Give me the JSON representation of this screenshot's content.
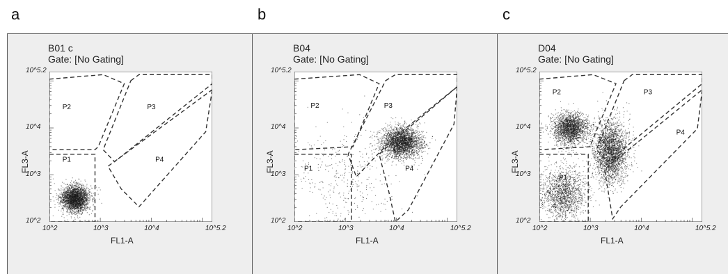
{
  "panels": [
    {
      "letter": "a",
      "sample": "B01 c",
      "gate": "Gate: [No Gating]"
    },
    {
      "letter": "b",
      "sample": "B04",
      "gate": "Gate: [No Gating]"
    },
    {
      "letter": "c",
      "sample": "D04",
      "gate": "Gate: [No Gating]"
    }
  ],
  "axes": {
    "xlabel": "FL1-A",
    "ylabel": "FL3-A"
  },
  "ticks": [
    "10^2",
    "10^3",
    "10^4",
    "10^5.2"
  ],
  "gate_names": [
    "P1",
    "P2",
    "P3",
    "P4"
  ],
  "chart_data": [
    {
      "type": "scatter",
      "title": "B01 c",
      "subtitle": "Gate: [No Gating]",
      "xlabel": "FL1-A",
      "ylabel": "FL3-A",
      "x_scale": "log",
      "y_scale": "log",
      "xlim": [
        100,
        158489
      ],
      "ylim": [
        100,
        158489
      ],
      "clusters": [
        {
          "x_center": 316,
          "y_center": 316,
          "x_spread_decades": 0.25,
          "y_spread_decades": 0.25,
          "relative_density": 1.0
        }
      ],
      "gates": [
        "P1",
        "P2",
        "P3",
        "P4"
      ]
    },
    {
      "type": "scatter",
      "title": "B04",
      "subtitle": "Gate: [No Gating]",
      "xlabel": "FL1-A",
      "ylabel": "FL3-A",
      "x_scale": "log",
      "y_scale": "log",
      "xlim": [
        100,
        158489
      ],
      "ylim": [
        100,
        158489
      ],
      "clusters": [
        {
          "x_center": 12589,
          "y_center": 5012,
          "x_spread_decades": 0.35,
          "y_spread_decades": 0.3,
          "relative_density": 1.0
        },
        {
          "x_center": 1000,
          "y_center": 1000,
          "x_spread_decades": 1.0,
          "y_spread_decades": 1.0,
          "relative_density": 0.15
        }
      ],
      "gates": [
        "P1",
        "P2",
        "P3",
        "P4"
      ]
    },
    {
      "type": "scatter",
      "title": "D04",
      "subtitle": "Gate: [No Gating]",
      "xlabel": "FL1-A",
      "ylabel": "FL3-A",
      "x_scale": "log",
      "y_scale": "log",
      "xlim": [
        100,
        158489
      ],
      "ylim": [
        100,
        158489
      ],
      "clusters": [
        {
          "x_center": 400,
          "y_center": 10000,
          "x_spread_decades": 0.3,
          "y_spread_decades": 0.3,
          "relative_density": 0.8
        },
        {
          "x_center": 2500,
          "y_center": 3162,
          "x_spread_decades": 0.3,
          "y_spread_decades": 0.6,
          "relative_density": 1.0
        },
        {
          "x_center": 300,
          "y_center": 400,
          "x_spread_decades": 0.4,
          "y_spread_decades": 0.5,
          "relative_density": 0.6
        }
      ],
      "gates": [
        "P1",
        "P2",
        "P3",
        "P4"
      ]
    }
  ]
}
